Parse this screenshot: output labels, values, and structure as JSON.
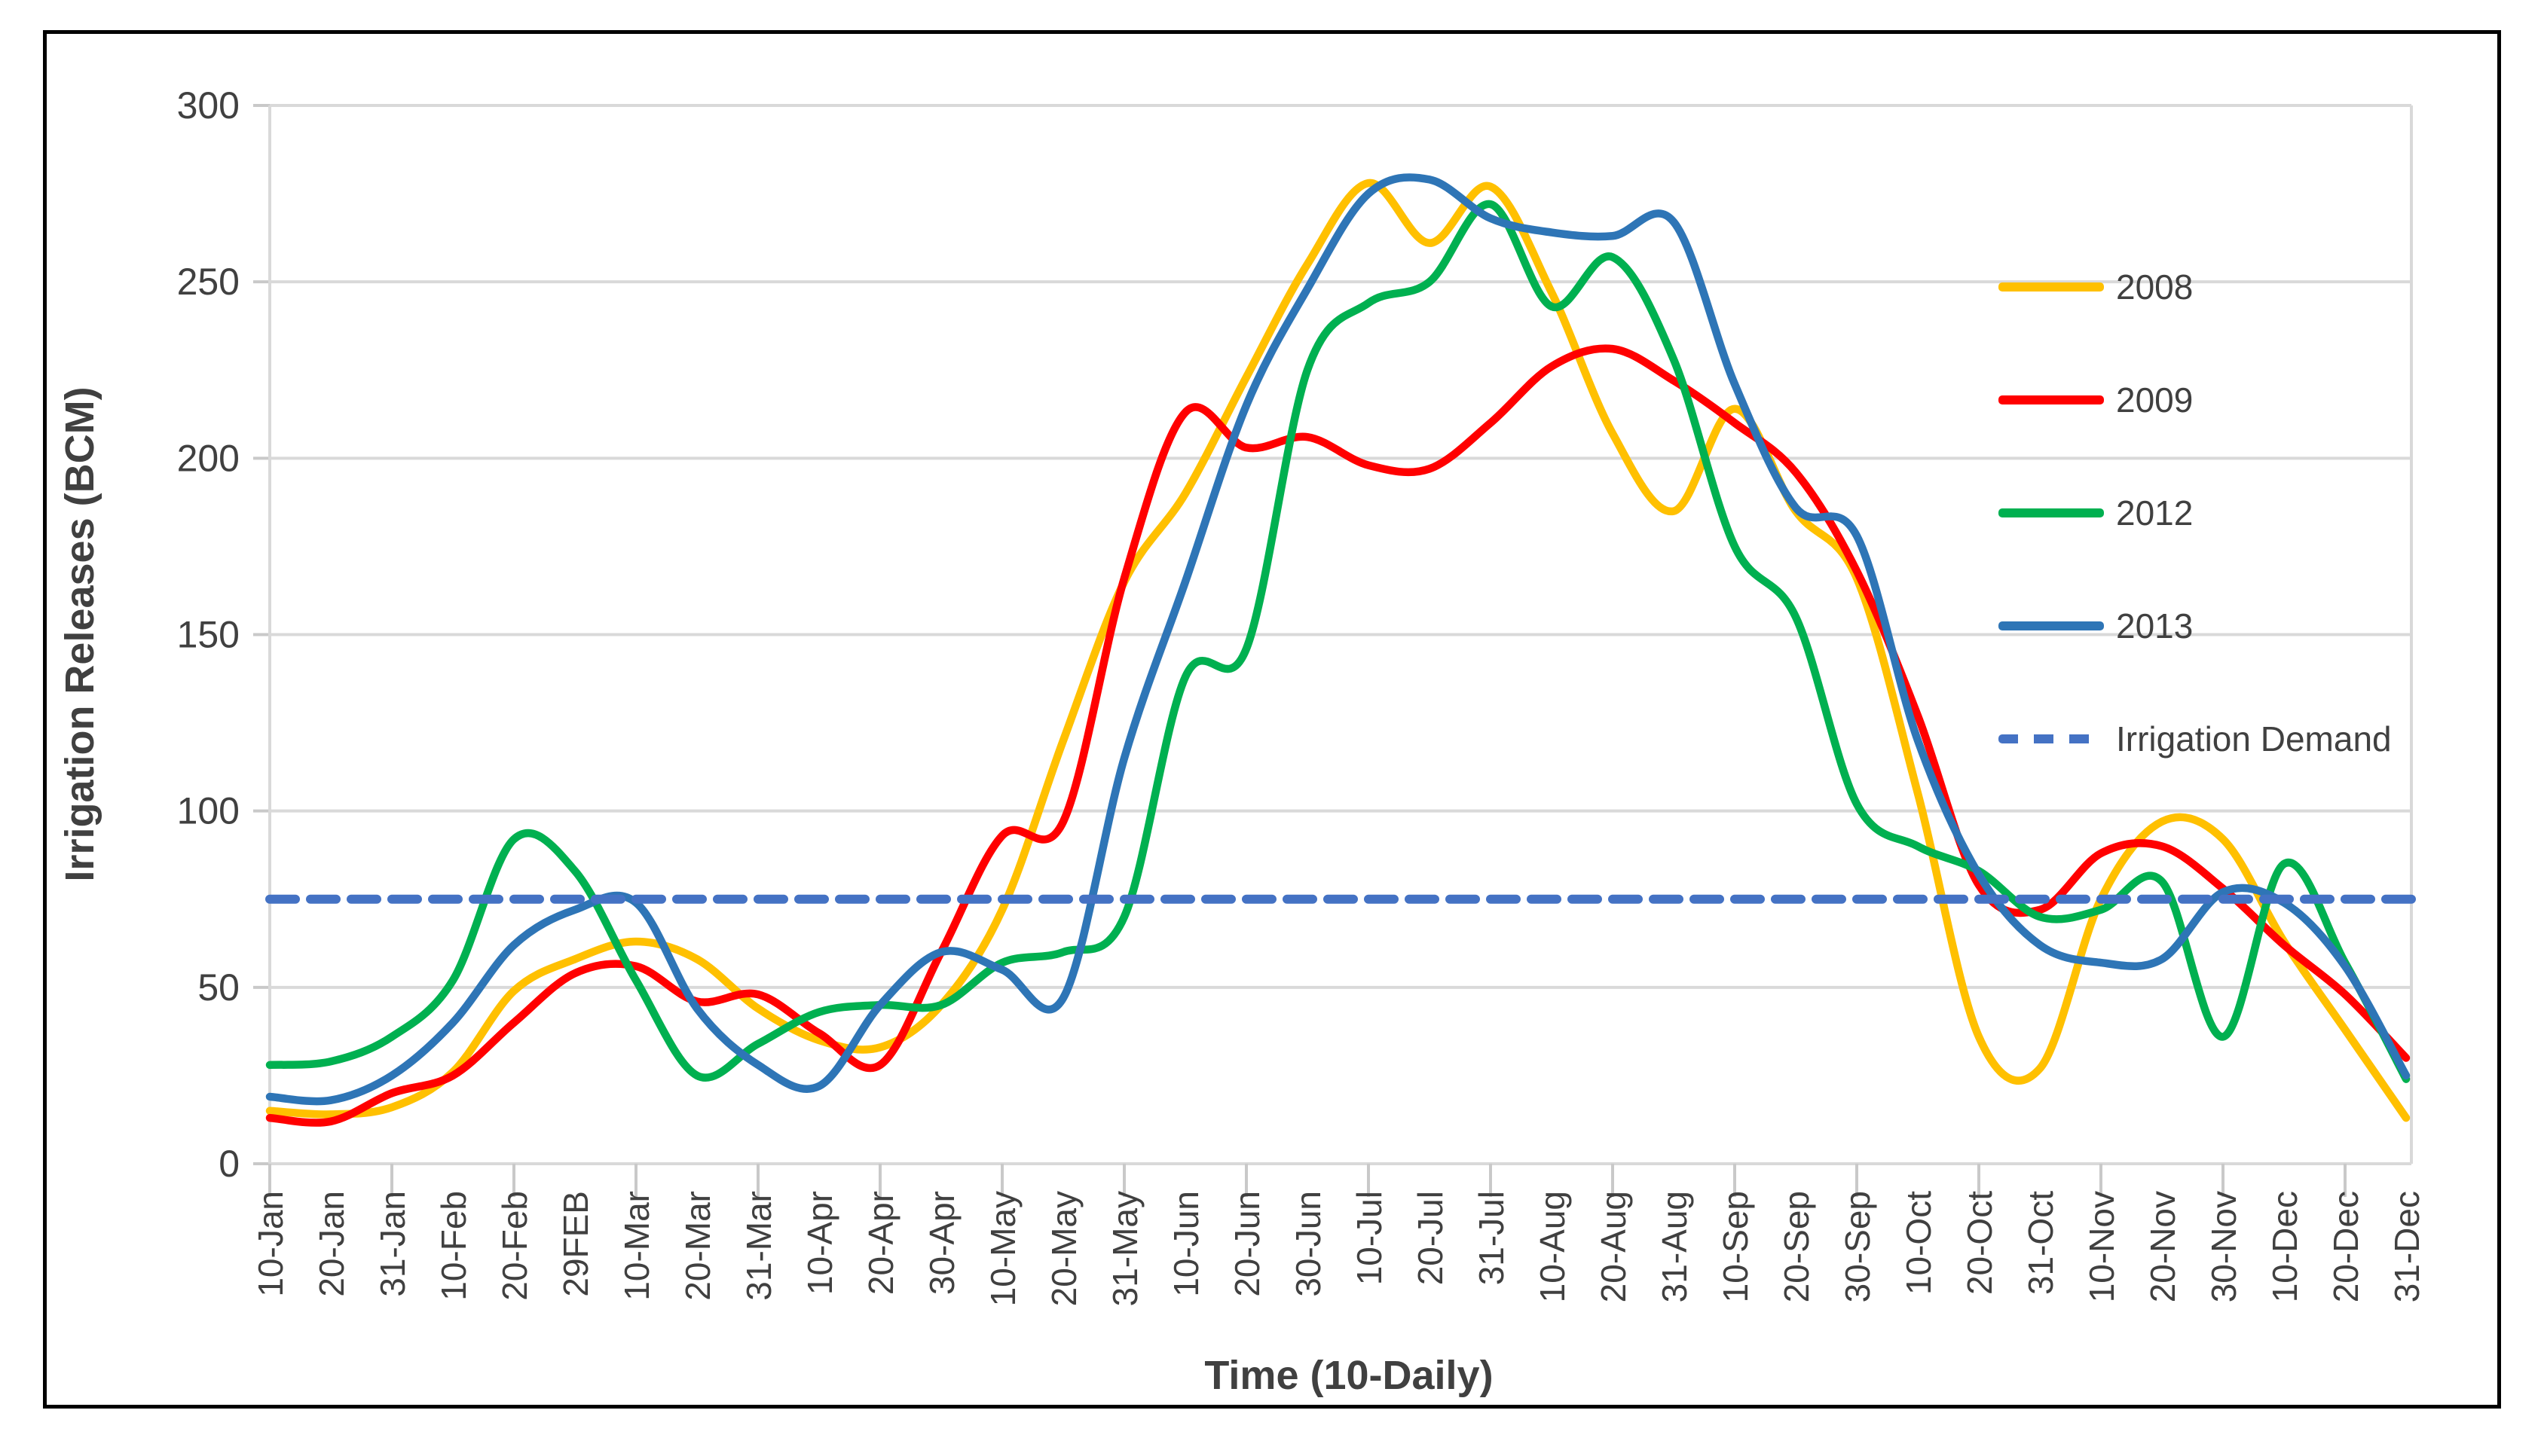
{
  "chart_data": {
    "type": "line",
    "title": "",
    "xlabel": "Time (10-Daily)",
    "ylabel": "Irrigation Releases (BCM)",
    "ylim": [
      0,
      300
    ],
    "yticks": [
      0,
      50,
      100,
      150,
      200,
      250,
      300
    ],
    "grid": "horizontal-only",
    "legend_position": "inside-right",
    "categories": [
      "10-Jan",
      "20-Jan",
      "31-Jan",
      "10-Feb",
      "20-Feb",
      "29FEB",
      "10-Mar",
      "20-Mar",
      "31-Mar",
      "10-Apr",
      "20-Apr",
      "30-Apr",
      "10-May",
      "20-May",
      "31-May",
      "10-Jun",
      "20-Jun",
      "30-Jun",
      "10-Jul",
      "20-Jul",
      "31-Jul",
      "10-Aug",
      "20-Aug",
      "31-Aug",
      "10-Sep",
      "20-Sep",
      "30-Sep",
      "10-Oct",
      "20-Oct",
      "31-Oct",
      "10-Nov",
      "20-Nov",
      "30-Nov",
      "10-Dec",
      "20-Dec",
      "31-Dec"
    ],
    "series": [
      {
        "name": "2008",
        "color": "#FFC000",
        "dash": false,
        "values": [
          15,
          14,
          16,
          26,
          49,
          58,
          63,
          58,
          44,
          35,
          33,
          45,
          72,
          120,
          165,
          190,
          223,
          255,
          278,
          261,
          277,
          247,
          207,
          185,
          214,
          185,
          166,
          105,
          36,
          27,
          75,
          97,
          92,
          63,
          38,
          13
        ]
      },
      {
        "name": "2009",
        "color": "#FF0000",
        "dash": false,
        "values": [
          13,
          12,
          20,
          25,
          40,
          54,
          56,
          46,
          48,
          37,
          28,
          60,
          93,
          97,
          166,
          213,
          203,
          206,
          198,
          197,
          210,
          226,
          231,
          222,
          210,
          196,
          168,
          127,
          79,
          72,
          88,
          90,
          78,
          62,
          48,
          30
        ]
      },
      {
        "name": "2012",
        "color": "#00B050",
        "dash": false,
        "values": [
          28,
          29,
          36,
          52,
          92,
          83,
          52,
          25,
          34,
          43,
          45,
          45,
          57,
          60,
          70,
          138,
          146,
          225,
          244,
          250,
          272,
          243,
          257,
          228,
          175,
          155,
          102,
          90,
          83,
          70,
          72,
          80,
          36,
          85,
          57,
          24
        ]
      },
      {
        "name": "2013",
        "color": "#2E75B6",
        "dash": false,
        "values": [
          19,
          18,
          25,
          40,
          62,
          72,
          74,
          44,
          28,
          22,
          45,
          60,
          55,
          47,
          115,
          165,
          215,
          248,
          275,
          279,
          268,
          264,
          263,
          267,
          221,
          186,
          178,
          120,
          82,
          62,
          57,
          58,
          77,
          74,
          56,
          25
        ]
      },
      {
        "name": "Irrigation Demand",
        "color": "#4472C4",
        "dash": true,
        "constant": 75
      }
    ],
    "legend": [
      {
        "label": "2008",
        "color": "#FFC000",
        "dash": false
      },
      {
        "label": "2009",
        "color": "#FF0000",
        "dash": false
      },
      {
        "label": "2012",
        "color": "#00B050",
        "dash": false
      },
      {
        "label": "2013",
        "color": "#2E75B6",
        "dash": false
      },
      {
        "label": "Irrigation Demand",
        "color": "#4472C4",
        "dash": true
      }
    ]
  }
}
